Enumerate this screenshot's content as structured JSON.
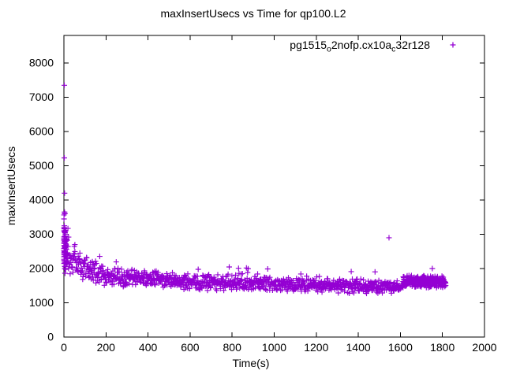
{
  "window": {
    "background": "#ffffff"
  },
  "chart_data": {
    "type": "scatter",
    "title": "maxInsertUsecs vs Time for qp100.L2",
    "xlabel": "Time(s)",
    "ylabel": "maxInsertUsecs",
    "xlim": [
      0,
      2000
    ],
    "ylim": [
      0,
      8805
    ],
    "xticks": [
      0,
      200,
      400,
      600,
      800,
      1000,
      1200,
      1400,
      1600,
      1800,
      2000
    ],
    "yticks": [
      0,
      1000,
      2000,
      3000,
      4000,
      5000,
      6000,
      7000,
      8000
    ],
    "grid": false,
    "legend_position": "top-right-inside",
    "axis_color": "#000000",
    "series": [
      {
        "name": "pg1515_o2nofp.cx10a_c32r128",
        "name_parts": [
          {
            "text": "pg1515",
            "sub": false
          },
          {
            "text": "o",
            "sub": true
          },
          {
            "text": "2nofp.cx10a",
            "sub": false
          },
          {
            "text": "c",
            "sub": true
          },
          {
            "text": "32r128",
            "sub": false
          }
        ],
        "color": "#9400d3",
        "marker": "plus",
        "time_range": [
          0,
          1816
        ],
        "point_count": 1150,
        "outliers": [
          [
            2,
            7350
          ],
          [
            2,
            5230
          ],
          [
            3,
            4200
          ],
          [
            3,
            3650
          ],
          [
            5,
            3600
          ],
          [
            4,
            3170
          ],
          [
            6,
            3080
          ],
          [
            5,
            2950
          ],
          [
            7,
            2870
          ],
          [
            9,
            2790
          ],
          [
            19,
            3170
          ],
          [
            52,
            2700
          ],
          [
            135,
            2200
          ],
          [
            1546,
            2900
          ],
          [
            1752,
            2000
          ]
        ],
        "startup_streak": {
          "count": 16,
          "t_range": [
            0,
            4
          ],
          "v_range": [
            1900,
            3400
          ]
        },
        "startup_burst": {
          "count": 60,
          "t_max": 25,
          "spread_mult": 1.9
        },
        "tail_cluster": {
          "count": 160,
          "t_range": [
            1612,
            1816
          ]
        },
        "trend": [
          [
            0,
            2750,
            600
          ],
          [
            8,
            2500,
            430
          ],
          [
            20,
            2360,
            340
          ],
          [
            40,
            2220,
            300
          ],
          [
            80,
            2070,
            255
          ],
          [
            120,
            1960,
            225
          ],
          [
            160,
            1885,
            210
          ],
          [
            200,
            1805,
            200
          ],
          [
            250,
            1745,
            185
          ],
          [
            320,
            1725,
            175
          ],
          [
            400,
            1695,
            170
          ],
          [
            500,
            1655,
            165
          ],
          [
            600,
            1620,
            160
          ],
          [
            700,
            1595,
            155
          ],
          [
            800,
            1575,
            155
          ],
          [
            900,
            1585,
            160
          ],
          [
            1000,
            1530,
            160
          ],
          [
            1100,
            1515,
            155
          ],
          [
            1250,
            1500,
            150
          ],
          [
            1400,
            1480,
            150
          ],
          [
            1550,
            1462,
            145
          ],
          [
            1605,
            1455,
            140
          ],
          [
            1618,
            1625,
            125
          ],
          [
            1720,
            1620,
            125
          ],
          [
            1816,
            1600,
            125
          ]
        ],
        "spike_probability": 0.025,
        "spike_max_extra": 320,
        "value_floor": 1230,
        "seed": 1234567
      }
    ]
  }
}
